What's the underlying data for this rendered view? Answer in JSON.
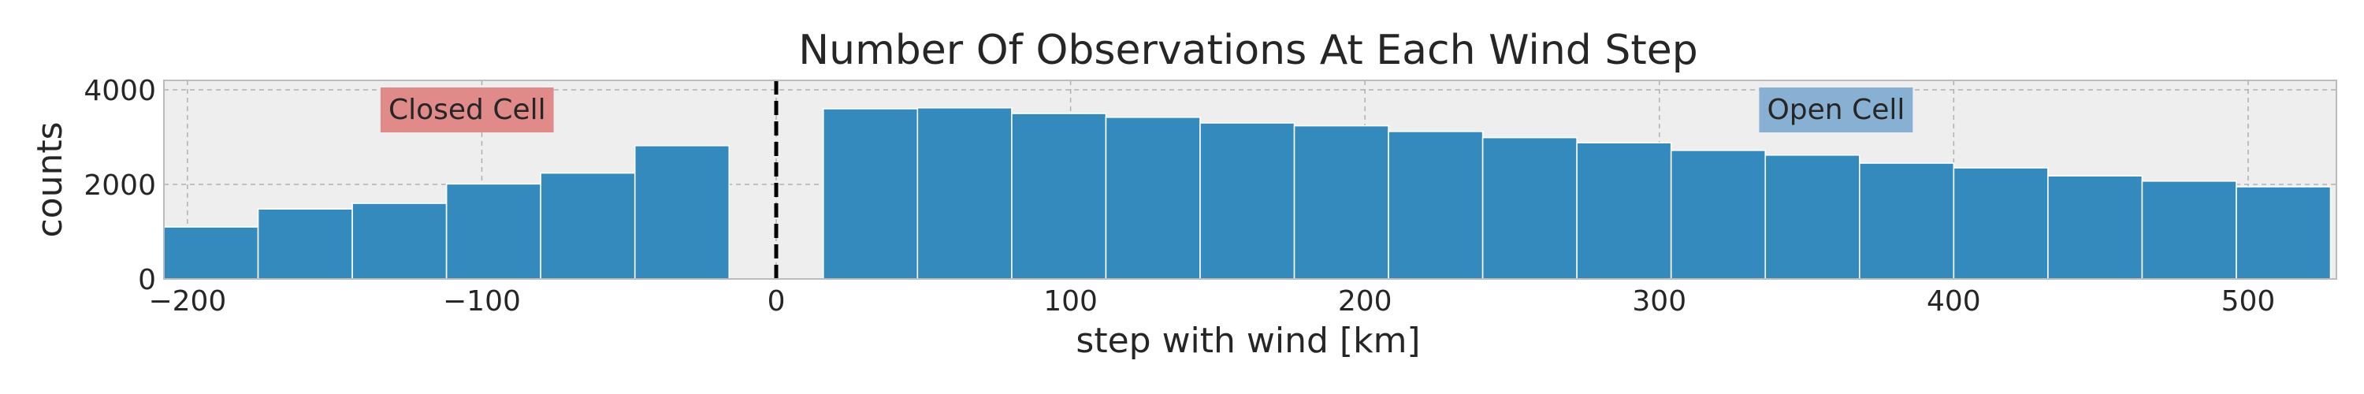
{
  "chart_data": {
    "type": "bar",
    "title": "Number Of Observations At Each Wind Step",
    "xlabel": "step with wind [km]",
    "ylabel": "counts",
    "xlim": [
      -208,
      530
    ],
    "ylim": [
      0,
      4200
    ],
    "xticks": [
      -200,
      -100,
      0,
      100,
      200,
      300,
      400,
      500
    ],
    "xtick_labels": [
      "−200",
      "−100",
      "0",
      "100",
      "200",
      "300",
      "400",
      "500"
    ],
    "yticks": [
      0,
      2000,
      4000
    ],
    "ytick_labels": [
      "0",
      "2000",
      "4000"
    ],
    "grid": true,
    "bin_width": 32,
    "bins": [
      {
        "x_start": -208,
        "value": 1100
      },
      {
        "x_start": -176,
        "value": 1480
      },
      {
        "x_start": -144,
        "value": 1600
      },
      {
        "x_start": -112,
        "value": 2010
      },
      {
        "x_start": -80,
        "value": 2240
      },
      {
        "x_start": -48,
        "value": 2820
      },
      {
        "x_start": 16,
        "value": 3600
      },
      {
        "x_start": 48,
        "value": 3620
      },
      {
        "x_start": 80,
        "value": 3500
      },
      {
        "x_start": 112,
        "value": 3420
      },
      {
        "x_start": 144,
        "value": 3300
      },
      {
        "x_start": 176,
        "value": 3240
      },
      {
        "x_start": 208,
        "value": 3120
      },
      {
        "x_start": 240,
        "value": 2990
      },
      {
        "x_start": 272,
        "value": 2880
      },
      {
        "x_start": 304,
        "value": 2720
      },
      {
        "x_start": 336,
        "value": 2620
      },
      {
        "x_start": 368,
        "value": 2450
      },
      {
        "x_start": 400,
        "value": 2350
      },
      {
        "x_start": 432,
        "value": 2180
      },
      {
        "x_start": 464,
        "value": 2070
      },
      {
        "x_start": 496,
        "value": 1950
      }
    ],
    "vline": {
      "x": 0,
      "style": "dashed",
      "color": "#000000"
    },
    "annotations": [
      {
        "text": "Closed Cell",
        "x": -105,
        "y": 3550,
        "bg": "#e08a8a"
      },
      {
        "text": "Open Cell",
        "x": 360,
        "y": 3550,
        "bg": "#87b0d2"
      }
    ],
    "colors": {
      "bar": "#348abd",
      "plot_bg": "#eeeeee",
      "frame": "#bcbcbc"
    }
  }
}
